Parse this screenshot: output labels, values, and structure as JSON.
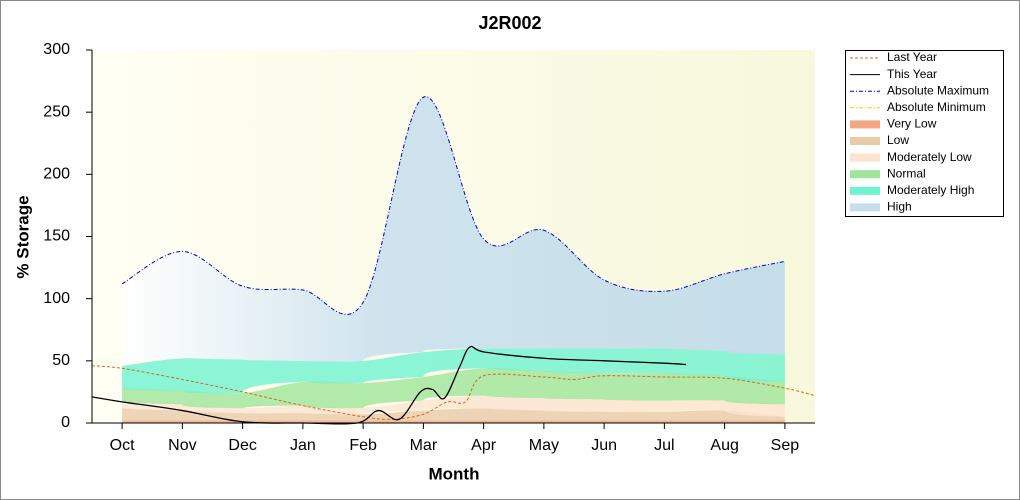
{
  "chart_data": {
    "type": "line",
    "title": "J2R002",
    "x_label": "Month",
    "y_label": "% Storage",
    "xlim": [
      0,
      12
    ],
    "xticks": [
      {
        "value": 0.5,
        "label": "Oct"
      },
      {
        "value": 1.5,
        "label": "Nov"
      },
      {
        "value": 2.5,
        "label": "Dec"
      },
      {
        "value": 3.5,
        "label": "Jan"
      },
      {
        "value": 4.5,
        "label": "Feb"
      },
      {
        "value": 5.5,
        "label": "Mar"
      },
      {
        "value": 6.5,
        "label": "Apr"
      },
      {
        "value": 7.5,
        "label": "May"
      },
      {
        "value": 8.5,
        "label": "Jun"
      },
      {
        "value": 9.5,
        "label": "Jul"
      },
      {
        "value": 10.5,
        "label": "Aug"
      },
      {
        "value": 11.5,
        "label": "Sep"
      }
    ],
    "ylim": [
      0,
      300
    ],
    "yticks": [
      0,
      50,
      100,
      150,
      200,
      250,
      300
    ],
    "x": [
      0.5,
      1.5,
      2.5,
      3.5,
      4.5,
      5.5,
      6.5,
      7.5,
      8.5,
      9.5,
      10.5,
      11.5
    ],
    "stacked_bands": true,
    "series": [
      {
        "name": "Last Year",
        "kind": "line",
        "color": "#d2691e",
        "dash": "3,2",
        "x": [
          0,
          0.5,
          1.5,
          2.5,
          3.5,
          4.5,
          5,
          5.5,
          5.9,
          6.2,
          6.5,
          7.5,
          8,
          8.5,
          9.5,
          10.5,
          11.5,
          12
        ],
        "values": [
          46,
          44,
          35,
          25,
          14,
          5,
          3,
          7,
          17,
          17,
          38,
          37,
          35,
          38,
          37,
          36,
          28,
          22
        ]
      },
      {
        "name": "This Year",
        "kind": "line",
        "color": "#000000",
        "dash": "",
        "x": [
          0,
          0.5,
          1.5,
          2.5,
          3.5,
          4.4,
          4.75,
          5.1,
          5.45,
          5.65,
          5.85,
          6.1,
          6.27,
          6.52,
          7.52,
          8.51,
          9.54,
          9.86
        ],
        "values": [
          21,
          17,
          10,
          1,
          0,
          0,
          10,
          3,
          25,
          27,
          20,
          45,
          61,
          57,
          52,
          50,
          48,
          47
        ]
      },
      {
        "name": "Absolute Maximum",
        "kind": "line",
        "color": "#0000cc",
        "dash": "4,2,1,2",
        "x": [
          0.5,
          1.5,
          2.5,
          3.5,
          4.5,
          5.5,
          6.5,
          7.5,
          8.5,
          9.5,
          10.5,
          11.5
        ],
        "values": [
          112,
          138,
          110,
          107,
          97,
          262,
          148,
          155,
          115,
          106,
          120,
          130
        ]
      },
      {
        "name": "Absolute Minimum",
        "kind": "line",
        "color": "#e6d600",
        "dash": "4,2,1,2",
        "x": [
          0.5,
          1.5,
          2.5,
          3.5,
          4.5,
          5.5,
          6.5,
          7.5,
          8.5,
          9.5,
          10.5,
          11.5
        ],
        "values": [
          0,
          0,
          0,
          0,
          0,
          0,
          0,
          0,
          0,
          0,
          0,
          0
        ]
      },
      {
        "name": "Very Low",
        "kind": "band",
        "color": "#f4a582",
        "values": [
          2,
          2,
          2,
          2,
          2,
          2,
          2,
          2,
          2,
          2,
          2,
          2
        ]
      },
      {
        "name": "Low",
        "kind": "band",
        "color": "#e9cba9",
        "values": [
          10,
          8,
          6,
          6,
          5,
          8,
          10,
          8,
          7,
          7,
          8,
          3
        ]
      },
      {
        "name": "Moderately Low",
        "kind": "band",
        "color": "#fde4cf",
        "values": [
          6,
          5,
          4,
          6,
          5,
          8,
          10,
          10,
          10,
          9,
          8,
          10
        ]
      },
      {
        "name": "Normal",
        "kind": "band",
        "color": "#9fe59a",
        "values": [
          10,
          11,
          12,
          19,
          20,
          19,
          22,
          22,
          21,
          22,
          20,
          18
        ]
      },
      {
        "name": "Moderately High",
        "kind": "band",
        "color": "#6ef2cf",
        "values": [
          18,
          26,
          27,
          17,
          18,
          20,
          16,
          18,
          20,
          20,
          20,
          22
        ]
      },
      {
        "name": "High",
        "kind": "band",
        "color": "#c6deec",
        "values": [
          66,
          86,
          59,
          57,
          47,
          205,
          88,
          95,
          55,
          46,
          62,
          75
        ]
      }
    ]
  }
}
